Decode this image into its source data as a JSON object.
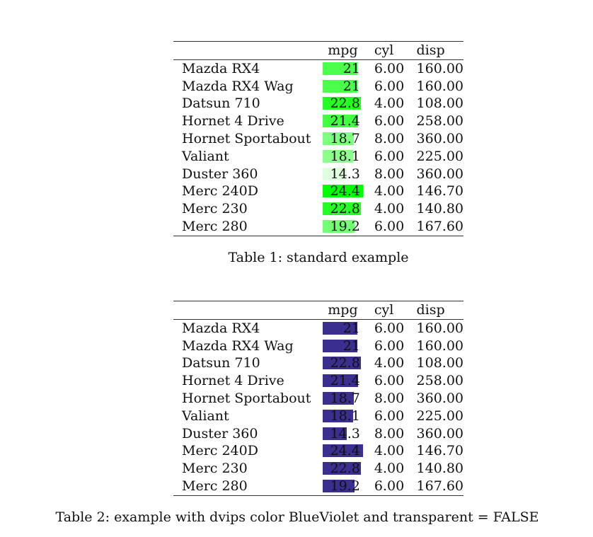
{
  "tables": [
    {
      "headers": [
        "",
        "mpg",
        "cyl",
        "disp"
      ],
      "bar_mode": "green-transparent",
      "rows": [
        {
          "name": "Mazda RX4",
          "mpg": "21",
          "cyl": "6.00",
          "disp": "160.00"
        },
        {
          "name": "Mazda RX4 Wag",
          "mpg": "21",
          "cyl": "6.00",
          "disp": "160.00"
        },
        {
          "name": "Datsun 710",
          "mpg": "22.8",
          "cyl": "4.00",
          "disp": "108.00"
        },
        {
          "name": "Hornet 4 Drive",
          "mpg": "21.4",
          "cyl": "6.00",
          "disp": "258.00"
        },
        {
          "name": "Hornet Sportabout",
          "mpg": "18.7",
          "cyl": "8.00",
          "disp": "360.00"
        },
        {
          "name": "Valiant",
          "mpg": "18.1",
          "cyl": "6.00",
          "disp": "225.00"
        },
        {
          "name": "Duster 360",
          "mpg": "14.3",
          "cyl": "8.00",
          "disp": "360.00"
        },
        {
          "name": "Merc 240D",
          "mpg": "24.4",
          "cyl": "4.00",
          "disp": "146.70"
        },
        {
          "name": "Merc 230",
          "mpg": "22.8",
          "cyl": "4.00",
          "disp": "140.80"
        },
        {
          "name": "Merc 280",
          "mpg": "19.2",
          "cyl": "6.00",
          "disp": "167.60"
        }
      ],
      "caption": "Table 1: standard example"
    },
    {
      "headers": [
        "",
        "mpg",
        "cyl",
        "disp"
      ],
      "bar_mode": "blueviolet-solid",
      "rows": [
        {
          "name": "Mazda RX4",
          "mpg": "21",
          "cyl": "6.00",
          "disp": "160.00"
        },
        {
          "name": "Mazda RX4 Wag",
          "mpg": "21",
          "cyl": "6.00",
          "disp": "160.00"
        },
        {
          "name": "Datsun 710",
          "mpg": "22.8",
          "cyl": "4.00",
          "disp": "108.00"
        },
        {
          "name": "Hornet 4 Drive",
          "mpg": "21.4",
          "cyl": "6.00",
          "disp": "258.00"
        },
        {
          "name": "Hornet Sportabout",
          "mpg": "18.7",
          "cyl": "8.00",
          "disp": "360.00"
        },
        {
          "name": "Valiant",
          "mpg": "18.1",
          "cyl": "6.00",
          "disp": "225.00"
        },
        {
          "name": "Duster 360",
          "mpg": "14.3",
          "cyl": "8.00",
          "disp": "360.00"
        },
        {
          "name": "Merc 240D",
          "mpg": "24.4",
          "cyl": "4.00",
          "disp": "146.70"
        },
        {
          "name": "Merc 230",
          "mpg": "22.8",
          "cyl": "4.00",
          "disp": "140.80"
        },
        {
          "name": "Merc 280",
          "mpg": "19.2",
          "cyl": "6.00",
          "disp": "167.60"
        }
      ],
      "caption": "Table 2: example with dvips color BlueViolet and transparent = FALSE"
    }
  ],
  "colors": {
    "green": "#00ff00",
    "blue_violet": "#3a2f8f",
    "rule": "#333333"
  }
}
